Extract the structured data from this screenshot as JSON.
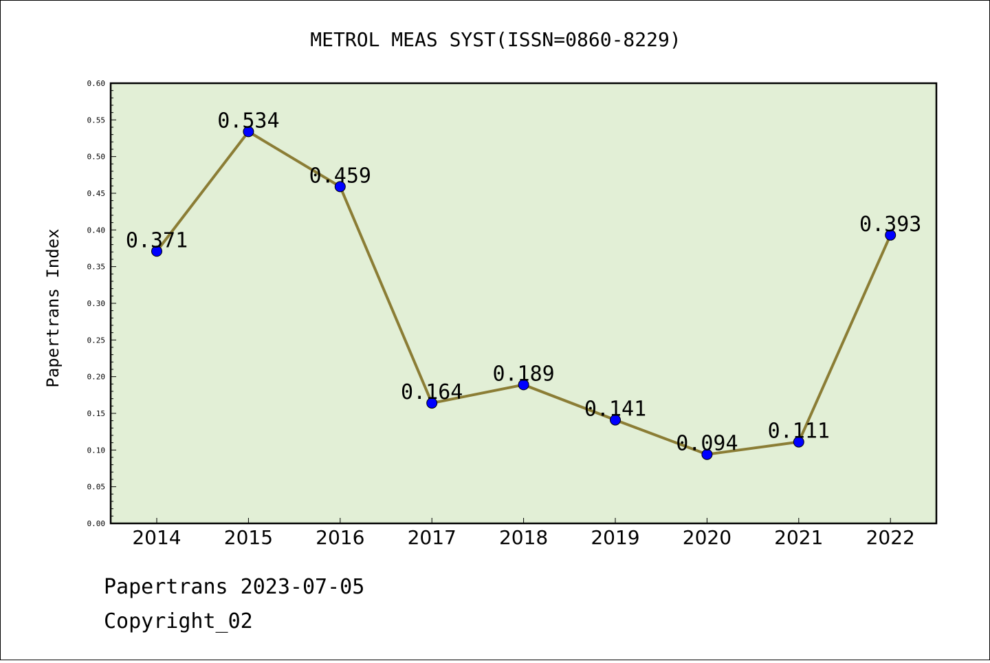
{
  "chart_data": {
    "type": "line",
    "title": "METROL MEAS SYST(ISSN=0860-8229)",
    "xlabel": "",
    "ylabel": "Papertrans Index",
    "categories": [
      "2014",
      "2015",
      "2016",
      "2017",
      "2018",
      "2019",
      "2020",
      "2021",
      "2022"
    ],
    "values": [
      0.371,
      0.534,
      0.459,
      0.164,
      0.189,
      0.141,
      0.094,
      0.111,
      0.393
    ],
    "value_labels": [
      "0.371",
      "0.534",
      "0.459",
      "0.164",
      "0.189",
      "0.141",
      "0.094",
      "0.111",
      "0.393"
    ],
    "ylim": [
      0,
      0.6
    ],
    "yticks": [
      "0.00",
      "0.05",
      "0.10",
      "0.15",
      "0.20",
      "0.25",
      "0.30",
      "0.35",
      "0.40",
      "0.45",
      "0.50",
      "0.55",
      "0.60"
    ],
    "grid": false,
    "legend": "none",
    "colors": {
      "plot_background": "#e2efd6",
      "line": "#8b7d35",
      "marker": "#0000ff"
    }
  },
  "footer": {
    "source": "Papertrans 2023-07-05",
    "copyright": "Copyright_02"
  }
}
